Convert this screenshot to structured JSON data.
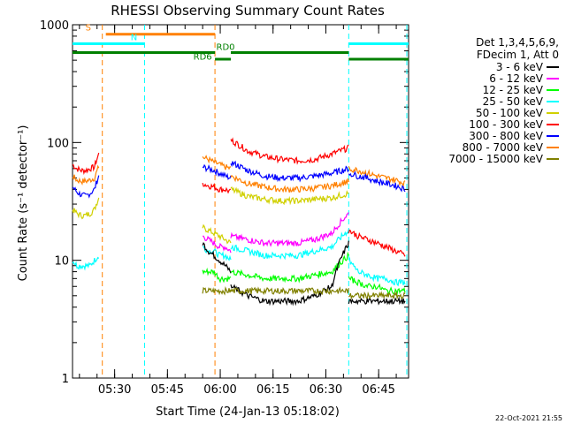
{
  "chart_data": {
    "type": "line",
    "title": "RHESSI Observing Summary Count Rates",
    "xlabel": "Start Time (24-Jan-13 05:18:02)",
    "ylabel": "Count Rate (s⁻¹ detector⁻¹)",
    "y_scale": "log",
    "ylim": [
      1,
      1000
    ],
    "xlim": [
      "05:18:02",
      "06:53:30"
    ],
    "x_ticks": [
      "05:30",
      "05:45",
      "06:00",
      "06:15",
      "06:30",
      "06:45"
    ],
    "y_ticks": [
      "1",
      "10",
      "100",
      "1000"
    ],
    "legend": {
      "placement": "right",
      "header": [
        "Det 1,3,4,5,6,9,",
        "FDecim 1, Att 0"
      ],
      "entries": [
        {
          "name": "3 - 6 keV",
          "color": "#000000"
        },
        {
          "name": "6 - 12 keV",
          "color": "#ff00ff"
        },
        {
          "name": "12 - 25 keV",
          "color": "#00ff00"
        },
        {
          "name": "25 - 50 keV",
          "color": "#00ffff"
        },
        {
          "name": "50 - 100 keV",
          "color": "#d0d000"
        },
        {
          "name": "100 - 300 keV",
          "color": "#ff0000"
        },
        {
          "name": "300 - 800 keV",
          "color": "#0000ff"
        },
        {
          "name": "800 - 7000 keV",
          "color": "#ff8000"
        },
        {
          "name": "7000 - 15000 keV",
          "color": "#808000"
        }
      ]
    },
    "flags": [
      {
        "label": "S",
        "color": "#ff8000",
        "start": "05:27:30",
        "end": "05:58:30",
        "level": 830
      },
      {
        "label": "N",
        "color": "#00ffff",
        "start": "05:18:02",
        "end": "05:38:30",
        "level": 690
      },
      {
        "label": "N",
        "color": "#00ffff",
        "start": "06:36:30",
        "end": "06:53:30",
        "level": 690
      },
      {
        "label": "RD0",
        "color": "#008000",
        "start": "05:58:30",
        "end": "06:03:00",
        "level": 510
      },
      {
        "label": "RD0",
        "color": "#008000",
        "start": "05:18:02",
        "end": "05:58:30",
        "level": 580
      },
      {
        "label": "RD0",
        "color": "#008000",
        "start": "06:03:00",
        "end": "06:36:30",
        "level": 580
      },
      {
        "label": "RD0",
        "color": "#008000",
        "start": "06:36:30",
        "end": "06:53:30",
        "level": 510
      }
    ],
    "flag_labels": [
      {
        "text": "S",
        "x": "05:22:30",
        "level": 850,
        "color": "#ff8000"
      },
      {
        "text": "N",
        "x": "05:35:30",
        "level": 700,
        "color": "#00ffff"
      },
      {
        "text": "RD0",
        "x": "06:01:30",
        "level": 580,
        "color": "#008000"
      },
      {
        "text": "RD6",
        "x": "05:55:00",
        "level": 480,
        "color": "#008000"
      }
    ],
    "vlines": [
      {
        "time": "05:26:30",
        "color": "#ff8000"
      },
      {
        "time": "05:38:30",
        "color": "#00ffff"
      },
      {
        "time": "05:58:30",
        "color": "#ff8000"
      },
      {
        "time": "06:36:30",
        "color": "#00ffff"
      },
      {
        "time": "06:53:00",
        "color": "#00ffff"
      }
    ],
    "segments": [
      {
        "start": "05:18:02",
        "end": "05:25:30",
        "series": [
          {
            "name": "100 - 300 keV",
            "values": [
              65,
              60,
              58,
              58,
              60,
              62,
              80
            ]
          },
          {
            "name": "800 - 7000 keV",
            "values": [
              52,
              48,
              47,
              47,
              48,
              50,
              62
            ]
          },
          {
            "name": "300 - 800 keV",
            "values": [
              42,
              38,
              36,
              35,
              37,
              40,
              52
            ]
          },
          {
            "name": "50 - 100 keV",
            "values": [
              27,
              25,
              24,
              24,
              25,
              27,
              34
            ]
          },
          {
            "name": "25 - 50 keV",
            "values": [
              10,
              9,
              9,
              9,
              9,
              10,
              11
            ]
          }
        ]
      },
      {
        "start": "05:55:00",
        "end": "06:03:00",
        "series": [
          {
            "name": "800 - 7000 keV",
            "values": [
              75,
              72,
              68,
              65,
              62,
              60
            ]
          },
          {
            "name": "300 - 800 keV",
            "values": [
              62,
              60,
              58,
              55,
              52,
              50
            ]
          },
          {
            "name": "100 - 300 keV",
            "values": [
              45,
              43,
              42,
              40,
              40,
              38
            ]
          },
          {
            "name": "50 - 100 keV",
            "values": [
              19,
              18,
              17,
              16,
              15,
              14
            ]
          },
          {
            "name": "6 - 12 keV",
            "values": [
              16,
              15,
              14,
              13,
              13,
              12
            ]
          },
          {
            "name": "25 - 50 keV",
            "values": [
              13,
              12,
              12,
              11,
              11,
              10
            ]
          },
          {
            "name": "3 - 6 keV",
            "values": [
              14,
              12,
              11,
              10,
              9,
              8
            ]
          },
          {
            "name": "12 - 25 keV",
            "values": [
              8,
              8,
              8,
              7,
              7,
              7
            ]
          },
          {
            "name": "7000 - 15000 keV",
            "values": [
              5.5,
              5.5,
              5.5,
              5.5,
              5.5,
              5.5
            ]
          }
        ]
      },
      {
        "start": "06:03:00",
        "end": "06:36:30",
        "series": [
          {
            "name": "100 - 300 keV",
            "values": [
              105,
              85,
              76,
              72,
              70,
              72,
              80,
              90
            ]
          },
          {
            "name": "300 - 800 keV",
            "values": [
              68,
              58,
              52,
              50,
              50,
              52,
              55,
              60
            ]
          },
          {
            "name": "800 - 7000 keV",
            "values": [
              52,
              45,
              42,
              40,
              40,
              41,
              43,
              47
            ]
          },
          {
            "name": "50 - 100 keV",
            "values": [
              40,
              35,
              33,
              32,
              32,
              33,
              34,
              37
            ]
          },
          {
            "name": "6 - 12 keV",
            "values": [
              16,
              15,
              14,
              14,
              14,
              15,
              17,
              25
            ]
          },
          {
            "name": "25 - 50 keV",
            "values": [
              13,
              12,
              11,
              11,
              11,
              12,
              13,
              18
            ]
          },
          {
            "name": "12 - 25 keV",
            "values": [
              8,
              7.5,
              7,
              7,
              7,
              7.5,
              8,
              11
            ]
          },
          {
            "name": "3 - 6 keV",
            "values": [
              6,
              5,
              4.5,
              4.5,
              4.5,
              5,
              6,
              14
            ]
          },
          {
            "name": "7000 - 15000 keV",
            "values": [
              5.5,
              5.5,
              5.5,
              5.5,
              5.5,
              5.5,
              5.5,
              5.5
            ]
          }
        ]
      },
      {
        "start": "06:36:30",
        "end": "06:52:30",
        "series": [
          {
            "name": "800 - 7000 keV",
            "values": [
              60,
              58,
              55,
              52,
              50,
              48,
              45
            ]
          },
          {
            "name": "300 - 800 keV",
            "values": [
              55,
              52,
              50,
              47,
              45,
              43,
              40
            ]
          },
          {
            "name": "100 - 300 keV",
            "values": [
              18,
              16,
              15,
              14,
              13,
              12,
              11
            ]
          },
          {
            "name": "25 - 50 keV",
            "values": [
              10,
              8,
              7.5,
              7,
              7,
              6.5,
              6.5
            ]
          },
          {
            "name": "12 - 25 keV",
            "values": [
              7,
              6.5,
              6,
              6,
              5.5,
              5.5,
              5.5
            ]
          },
          {
            "name": "7000 - 15000 keV",
            "values": [
              5,
              5,
              5,
              5,
              5,
              5,
              5
            ]
          },
          {
            "name": "3 - 6 keV",
            "values": [
              4.5,
              4.5,
              4.5,
              4.5,
              4.5,
              4.5,
              4.5
            ]
          }
        ]
      }
    ]
  },
  "footer": {
    "timestamp": "22-Oct-2021 21:55"
  }
}
